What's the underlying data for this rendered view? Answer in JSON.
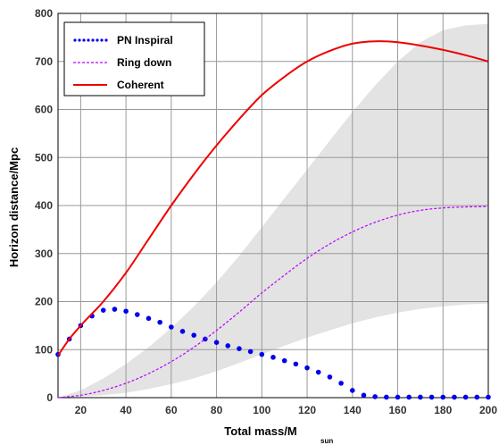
{
  "chart_data": {
    "type": "line",
    "xlabel": "Total mass/M",
    "xlabel_sub": "sun",
    "ylabel": "Horizon distance/Mpc",
    "xlim": [
      10,
      200
    ],
    "ylim": [
      0,
      800
    ],
    "xticks": [
      20,
      40,
      60,
      80,
      100,
      120,
      140,
      160,
      180,
      200
    ],
    "yticks": [
      0,
      100,
      200,
      300,
      400,
      500,
      600,
      700,
      800
    ],
    "grid": true,
    "legend_position": "top-left",
    "band": {
      "color": "#e3e3e3",
      "x": [
        10,
        20,
        30,
        40,
        50,
        60,
        70,
        80,
        90,
        100,
        110,
        120,
        130,
        140,
        150,
        160,
        170,
        180,
        190,
        200
      ],
      "lower": [
        0,
        2,
        5,
        10,
        18,
        28,
        40,
        55,
        72,
        90,
        108,
        125,
        140,
        155,
        167,
        177,
        185,
        190,
        194,
        196
      ],
      "upper": [
        0,
        15,
        40,
        70,
        105,
        145,
        190,
        240,
        295,
        355,
        415,
        475,
        535,
        595,
        650,
        700,
        740,
        765,
        775,
        778
      ]
    },
    "series": [
      {
        "name": "PN Inspiral",
        "style": "dotted",
        "color": "#0000ee",
        "x": [
          10,
          15,
          20,
          25,
          30,
          35,
          40,
          45,
          50,
          55,
          60,
          65,
          70,
          75,
          80,
          85,
          90,
          95,
          100,
          105,
          110,
          115,
          120,
          125,
          130,
          135,
          140,
          145,
          150,
          155,
          160,
          165,
          170,
          175,
          180,
          185,
          190,
          195,
          200
        ],
        "values": [
          90,
          122,
          150,
          170,
          182,
          184,
          180,
          173,
          165,
          157,
          147,
          138,
          130,
          122,
          115,
          108,
          102,
          96,
          90,
          84,
          77,
          70,
          62,
          53,
          43,
          30,
          15,
          5,
          2,
          1,
          1,
          1,
          1,
          1,
          1,
          1,
          1,
          1,
          1
        ]
      },
      {
        "name": "Ring down",
        "style": "dashed",
        "color": "#bb00ff",
        "x": [
          10,
          20,
          30,
          40,
          50,
          60,
          70,
          80,
          90,
          100,
          110,
          120,
          130,
          140,
          150,
          160,
          170,
          180,
          190,
          200
        ],
        "values": [
          0,
          5,
          15,
          30,
          50,
          75,
          105,
          140,
          178,
          218,
          255,
          290,
          320,
          345,
          365,
          380,
          390,
          395,
          397,
          398
        ]
      },
      {
        "name": "Coherent",
        "style": "solid",
        "color": "#ee0000",
        "x": [
          10,
          15,
          20,
          25,
          30,
          40,
          50,
          60,
          70,
          80,
          90,
          100,
          110,
          120,
          130,
          140,
          150,
          160,
          170,
          180,
          190,
          200
        ],
        "values": [
          88,
          122,
          150,
          175,
          200,
          260,
          330,
          400,
          465,
          525,
          580,
          630,
          668,
          700,
          722,
          737,
          742,
          740,
          733,
          724,
          713,
          700
        ]
      }
    ]
  }
}
